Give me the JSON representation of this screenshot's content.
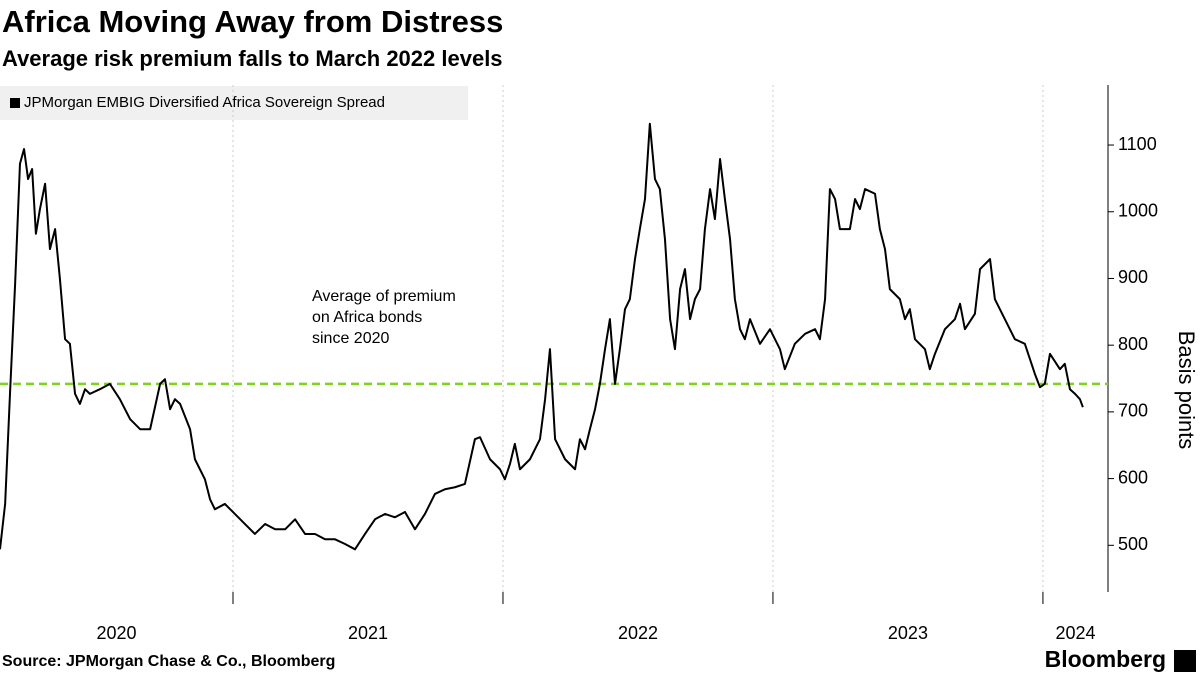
{
  "chart_data": {
    "type": "line",
    "title": "Africa Moving Away from Distress",
    "subtitle": "Average risk premium falls to March 2022 levels",
    "y_axis_label": "Basis points",
    "source": "Source: JPMorgan Chase & Co., Bloomberg",
    "brand": "Bloomberg",
    "x": [
      2020.137,
      2020.156,
      2020.174,
      2020.193,
      2020.211,
      2020.226,
      2020.241,
      2020.256,
      2020.27,
      2020.285,
      2020.304,
      2020.322,
      2020.341,
      2020.359,
      2020.378,
      2020.396,
      2020.415,
      2020.433,
      2020.452,
      2020.47,
      2020.507,
      2020.544,
      2020.581,
      2020.619,
      2020.656,
      2020.693,
      2020.73,
      2020.748,
      2020.767,
      2020.785,
      2020.804,
      2020.841,
      2020.859,
      2020.896,
      2020.915,
      2020.933,
      2020.97,
      2021.007,
      2021.044,
      2021.081,
      2021.119,
      2021.156,
      2021.193,
      2021.23,
      2021.267,
      2021.304,
      2021.341,
      2021.378,
      2021.415,
      2021.452,
      2021.489,
      2021.526,
      2021.563,
      2021.6,
      2021.637,
      2021.674,
      2021.711,
      2021.748,
      2021.785,
      2021.822,
      2021.859,
      2021.896,
      2021.915,
      2021.952,
      2021.989,
      2022.007,
      2022.026,
      2022.044,
      2022.063,
      2022.1,
      2022.137,
      2022.156,
      2022.174,
      2022.193,
      2022.23,
      2022.267,
      2022.285,
      2022.304,
      2022.322,
      2022.341,
      2022.359,
      2022.378,
      2022.396,
      2022.415,
      2022.433,
      2022.452,
      2022.47,
      2022.489,
      2022.507,
      2022.526,
      2022.544,
      2022.563,
      2022.581,
      2022.6,
      2022.619,
      2022.637,
      2022.656,
      2022.674,
      2022.693,
      2022.711,
      2022.73,
      2022.748,
      2022.767,
      2022.785,
      2022.804,
      2022.822,
      2022.841,
      2022.859,
      2022.878,
      2022.896,
      2022.915,
      2022.952,
      2022.989,
      2023.026,
      2023.044,
      2023.081,
      2023.119,
      2023.156,
      2023.174,
      2023.193,
      2023.211,
      2023.23,
      2023.248,
      2023.285,
      2023.304,
      2023.322,
      2023.341,
      2023.378,
      2023.396,
      2023.415,
      2023.433,
      2023.47,
      2023.489,
      2023.507,
      2023.526,
      2023.563,
      2023.581,
      2023.6,
      2023.637,
      2023.674,
      2023.693,
      2023.711,
      2023.748,
      2023.767,
      2023.804,
      2023.822,
      2023.859,
      2023.896,
      2023.933,
      2023.952,
      2023.97,
      2023.989,
      2024.007,
      2024.026,
      2024.063,
      2024.081,
      2024.1,
      2024.119,
      2024.137,
      2024.148
    ],
    "series": [
      {
        "name": "JPMorgan EMBIG Diversified Africa Sovereign Spread",
        "color": "#000000",
        "values": [
          494,
          562,
          727,
          892,
          1072,
          1094,
          1049,
          1064,
          967,
          1004,
          1042,
          944,
          974,
          899,
          809,
          802,
          727,
          712,
          734,
          727,
          734,
          742,
          719,
          689,
          674,
          674,
          742,
          749,
          704,
          719,
          712,
          674,
          629,
          599,
          569,
          554,
          562,
          547,
          532,
          517,
          532,
          524,
          524,
          539,
          517,
          517,
          509,
          509,
          502,
          494,
          517,
          539,
          547,
          542,
          550,
          524,
          547,
          577,
          584,
          587,
          592,
          659,
          662,
          629,
          614,
          599,
          622,
          652,
          614,
          629,
          659,
          719,
          794,
          659,
          629,
          614,
          659,
          644,
          674,
          704,
          742,
          794,
          839,
          742,
          794,
          854,
          869,
          929,
          974,
          1019,
          1132,
          1049,
          1034,
          959,
          839,
          794,
          884,
          914,
          839,
          869,
          884,
          974,
          1034,
          989,
          1079,
          1019,
          959,
          869,
          824,
          809,
          839,
          802,
          824,
          794,
          764,
          802,
          817,
          824,
          809,
          869,
          1034,
          1019,
          974,
          974,
          1019,
          1004,
          1034,
          1027,
          974,
          944,
          884,
          869,
          839,
          854,
          809,
          794,
          764,
          787,
          824,
          839,
          862,
          824,
          847,
          914,
          929,
          869,
          839,
          809,
          802,
          779,
          757,
          737,
          742,
          787,
          764,
          772,
          734,
          727,
          719,
          707
        ]
      }
    ],
    "reference_line": {
      "value": 742,
      "color": "#7ed321"
    },
    "annotation": {
      "lines": [
        "Average of premium",
        "on Africa bonds",
        "since 2020"
      ],
      "color": "#8fd14f"
    },
    "xlim": [
      2020.137,
      2024.241
    ],
    "xticks": [
      2020,
      2021,
      2022,
      2023,
      2024
    ],
    "ylim": [
      430,
      1190
    ],
    "yticks": [
      500,
      600,
      700,
      800,
      900,
      1000,
      1100
    ],
    "grid": true
  }
}
